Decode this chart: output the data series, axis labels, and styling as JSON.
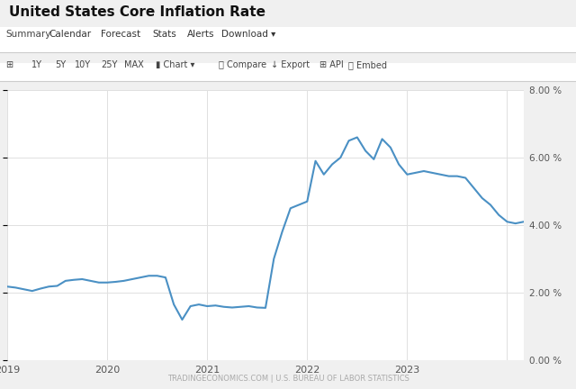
{
  "title": "United States Core Inflation Rate",
  "watermark": "TRADINGECONOMICS.COM | U.S. BUREAU OF LABOR STATISTICS",
  "background_color": "#f0f0f0",
  "plot_bg": "#ffffff",
  "line_color": "#4a90c4",
  "line_width": 1.5,
  "ylim": [
    0.0,
    8.0
  ],
  "yticks": [
    0.0,
    2.0,
    4.0,
    6.0,
    8.0
  ],
  "tabs": [
    "Summary",
    "Calendar",
    "Forecast",
    "Stats",
    "Alerts",
    "Download ▾"
  ],
  "toolbar_items": [
    "⊞",
    "1Y",
    "5Y",
    "10Y",
    "25Y",
    "MAX",
    "Chart ▾",
    "Compare",
    "Export",
    "API",
    "Embed"
  ],
  "data_x": [
    0,
    1,
    2,
    3,
    4,
    5,
    6,
    7,
    8,
    9,
    10,
    11,
    12,
    13,
    14,
    15,
    16,
    17,
    18,
    19,
    20,
    21,
    22,
    23,
    24,
    25,
    26,
    27,
    28,
    29,
    30,
    31,
    32,
    33,
    34,
    35,
    36,
    37,
    38,
    39,
    40,
    41,
    42,
    43,
    44,
    45,
    46,
    47,
    48,
    49,
    50,
    51,
    52,
    53,
    54,
    55,
    56,
    57,
    58,
    59,
    60,
    61,
    62
  ],
  "data_y": [
    2.18,
    2.15,
    2.1,
    2.05,
    2.12,
    2.18,
    2.2,
    2.35,
    2.38,
    2.4,
    2.35,
    2.3,
    2.3,
    2.32,
    2.35,
    2.4,
    2.45,
    2.5,
    2.5,
    2.45,
    1.65,
    1.2,
    1.6,
    1.65,
    1.6,
    1.62,
    1.58,
    1.56,
    1.58,
    1.6,
    1.56,
    1.55,
    3.0,
    3.8,
    4.5,
    4.6,
    4.7,
    5.9,
    5.5,
    5.8,
    6.0,
    6.5,
    6.6,
    6.2,
    5.95,
    6.55,
    6.3,
    5.8,
    5.5,
    5.55,
    5.6,
    5.55,
    5.5,
    5.45,
    5.45,
    5.4,
    5.1,
    4.8,
    4.6,
    4.3,
    4.1,
    4.05,
    4.1
  ],
  "xtick_positions": [
    0,
    12,
    24,
    36,
    48,
    60
  ],
  "xtick_labels": [
    "2019",
    "2020",
    "2021",
    "2022",
    "2023",
    ""
  ],
  "title_fontsize": 11,
  "tab_fontsize": 7.5,
  "toolbar_fontsize": 7,
  "watermark_fontsize": 6,
  "ytick_fontsize": 7.5,
  "xtick_fontsize": 8
}
